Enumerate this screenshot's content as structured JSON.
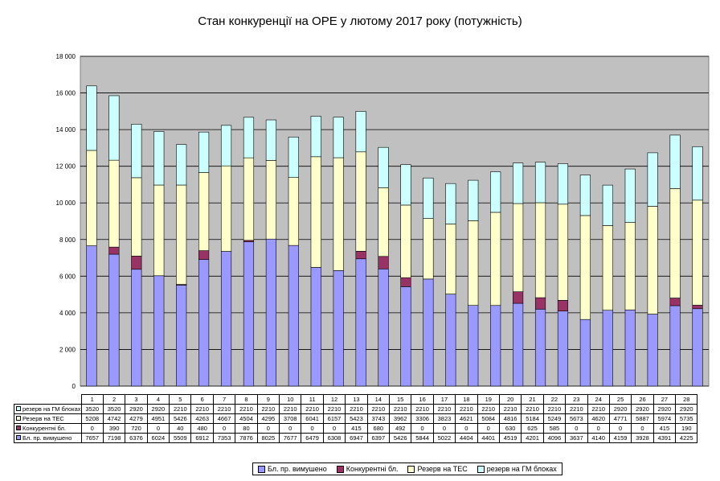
{
  "chart_data": {
    "type": "bar",
    "stacked": true,
    "title": "Стан конкуренції на ОРЕ  у лютому 2017 року (потужність)",
    "categories": [
      "1",
      "2",
      "3",
      "4",
      "5",
      "6",
      "7",
      "8",
      "9",
      "10",
      "11",
      "12",
      "13",
      "14",
      "15",
      "16",
      "17",
      "18",
      "19",
      "20",
      "21",
      "22",
      "23",
      "24",
      "25",
      "26",
      "27",
      "28"
    ],
    "ylim": [
      0,
      18000
    ],
    "yticks": [
      "0",
      "2 000",
      "4 000",
      "6 000",
      "8 000",
      "10 000",
      "12 000",
      "14 000",
      "16 000",
      "18 000"
    ],
    "grid": true,
    "legend_position": "bottom",
    "series": [
      {
        "name": "Бл. пр. вимушено",
        "color": "#9999ff",
        "values": [
          7657,
          7198,
          6376,
          6024,
          5509,
          6912,
          7353,
          7876,
          8025,
          7677,
          6479,
          6308,
          6947,
          6397,
          5426,
          5844,
          5022,
          4404,
          4401,
          4519,
          4201,
          4096,
          3637,
          4140,
          4159,
          3928,
          4391,
          4225
        ]
      },
      {
        "name": "Конкурентні бл.",
        "color": "#993366",
        "values": [
          0,
          390,
          720,
          0,
          40,
          480,
          0,
          80,
          0,
          0,
          0,
          0,
          415,
          680,
          492,
          0,
          0,
          0,
          0,
          630,
          625,
          585,
          0,
          0,
          0,
          0,
          415,
          190
        ]
      },
      {
        "name": "Резерв на ТЕС",
        "color": "#ffffcc",
        "values": [
          5208,
          4742,
          4279,
          4951,
          5426,
          4263,
          4667,
          4504,
          4295,
          3708,
          6041,
          6157,
          5423,
          3743,
          3962,
          3306,
          3823,
          4621,
          5084,
          4816,
          5184,
          5249,
          5673,
          4620,
          4771,
          5887,
          5974,
          5735
        ]
      },
      {
        "name": "резерв на ГМ блоках",
        "color": "#ccffff",
        "values": [
          3520,
          3520,
          2920,
          2920,
          2210,
          2210,
          2210,
          2210,
          2210,
          2210,
          2210,
          2210,
          2210,
          2210,
          2210,
          2210,
          2210,
          2210,
          2210,
          2210,
          2210,
          2210,
          2210,
          2210,
          2920,
          2920,
          2920,
          2920
        ]
      }
    ],
    "table_rows": [
      {
        "label": "резерв на ГМ блоках",
        "series_index": 3
      },
      {
        "label": "Резерв на ТЕС",
        "series_index": 2
      },
      {
        "label": "Конкурентні бл.",
        "series_index": 1
      },
      {
        "label": "Бл. пр. вимушено",
        "series_index": 0
      }
    ]
  }
}
